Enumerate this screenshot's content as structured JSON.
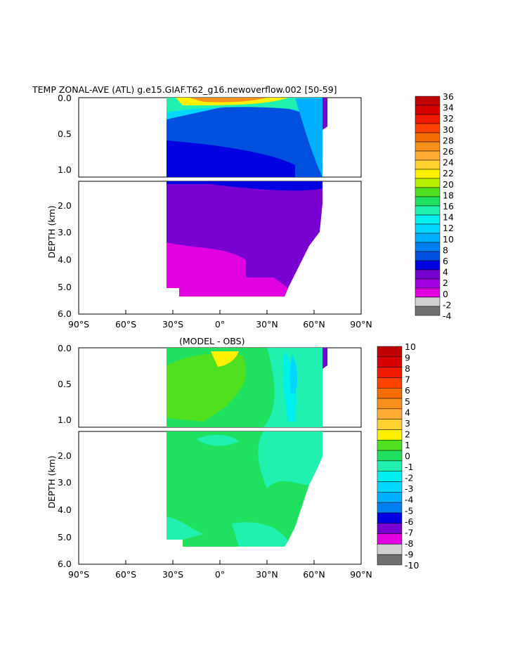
{
  "title": "TEMP ZONAL-AVE (ATL) g.e15.GIAF.T62_g16.newoverflow.002 [50-59]",
  "chart_data": [
    {
      "type": "heatmap",
      "panel": "top",
      "title": "TEMP ZONAL-AVE (ATL) g.e15.GIAF.T62_g16.newoverflow.002 [50-59]",
      "ylabel": "DEPTH (km)",
      "x_ticks": [
        "90°S",
        "60°S",
        "30°S",
        "0°",
        "30°N",
        "60°N",
        "90°N"
      ],
      "y_ticks_upper": [
        "0.0",
        "0.5",
        "1.0"
      ],
      "y_ticks_lower": [
        "2.0",
        "3.0",
        "4.0",
        "5.0",
        "6.0"
      ],
      "colorbar": {
        "labels": [
          "36",
          "34",
          "32",
          "30",
          "28",
          "26",
          "24",
          "22",
          "20",
          "18",
          "16",
          "14",
          "12",
          "10",
          "8",
          "6",
          "4",
          "2",
          "0",
          "-2",
          "-4"
        ],
        "colors": [
          "#bf0000",
          "#d60000",
          "#ef1a00",
          "#ff4200",
          "#f46d00",
          "#f7901a",
          "#ffad32",
          "#ffd032",
          "#fff000",
          "#b8f000",
          "#50e020",
          "#20e060",
          "#20f0b0",
          "#00f0f0",
          "#00d8ff",
          "#00b0ff",
          "#0080f0",
          "#0050e0",
          "#0000e0",
          "#7800d0",
          "#a000e0",
          "#e000e0",
          "#d0d0d0",
          "#707070"
        ]
      },
      "annotations": []
    },
    {
      "type": "heatmap",
      "panel": "bottom",
      "title": "(MODEL - OBS)",
      "ylabel": "DEPTH (km)",
      "x_ticks": [
        "90°S",
        "60°S",
        "30°S",
        "0°",
        "30°N",
        "60°N",
        "90°N"
      ],
      "y_ticks_upper": [
        "0.0",
        "0.5",
        "1.0"
      ],
      "y_ticks_lower": [
        "2.0",
        "3.0",
        "4.0",
        "5.0",
        "6.0"
      ],
      "colorbar": {
        "labels": [
          "10",
          "9",
          "8",
          "7",
          "6",
          "5",
          "4",
          "3",
          "2",
          "1",
          "0",
          "-1",
          "-2",
          "-3",
          "-4",
          "-5",
          "-6",
          "-7",
          "-8",
          "-9",
          "-10"
        ],
        "colors": [
          "#bf0000",
          "#d60000",
          "#ef1a00",
          "#ff4200",
          "#f46d00",
          "#f7901a",
          "#ffad32",
          "#ffd032",
          "#fff000",
          "#50e020",
          "#20e060",
          "#20f0b0",
          "#00f0f0",
          "#00d8ff",
          "#00b0ff",
          "#0080f0",
          "#0000e0",
          "#7800d0",
          "#e000e0",
          "#d0d0d0",
          "#707070"
        ]
      }
    }
  ]
}
